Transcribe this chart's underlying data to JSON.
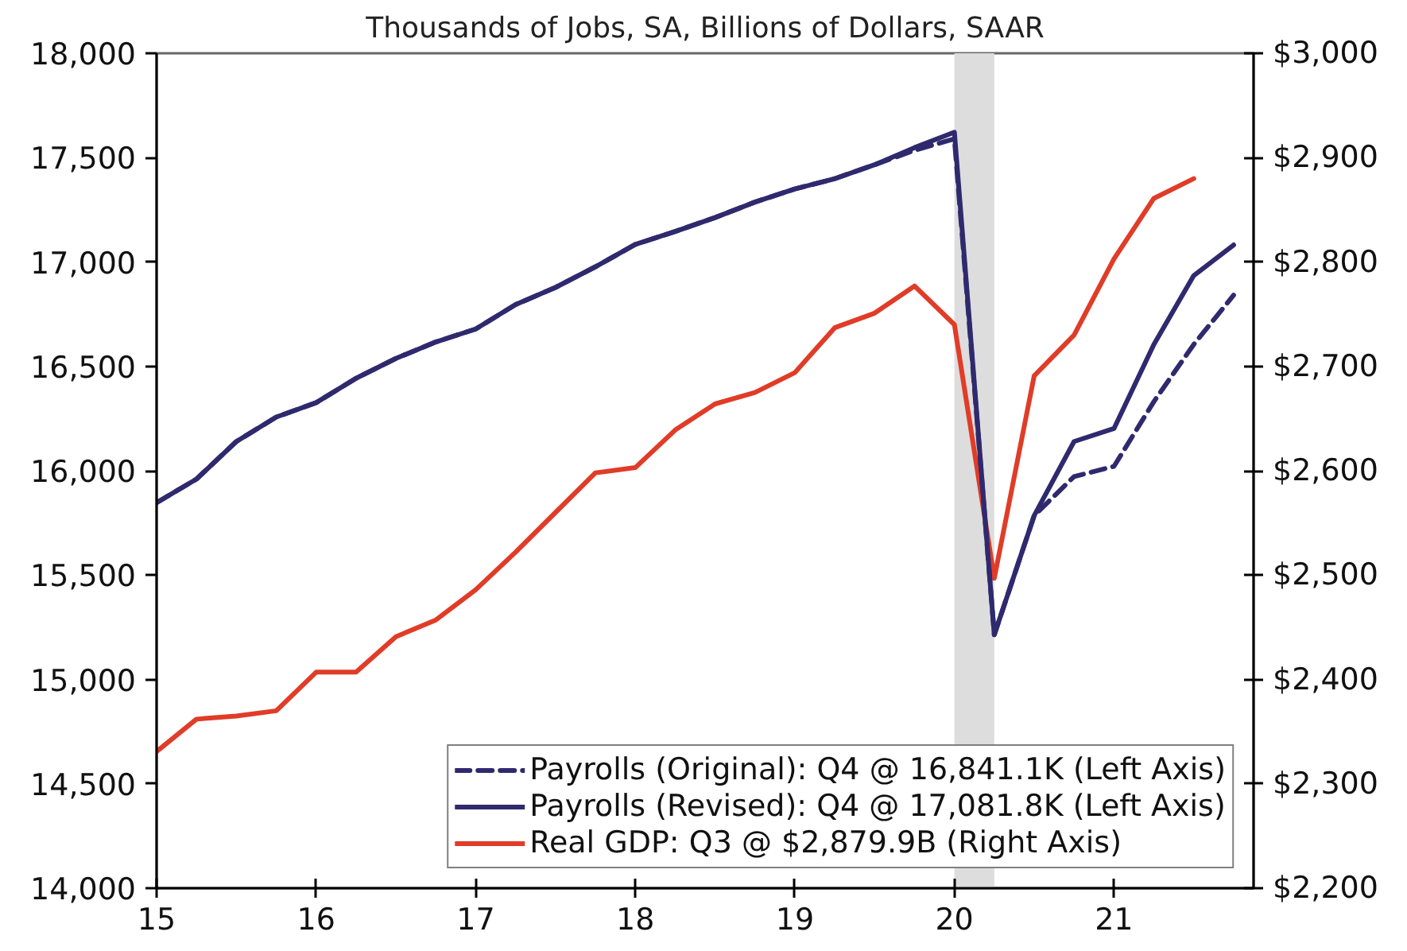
{
  "chart_data": {
    "type": "line",
    "subtitle": "Thousands of Jobs, SA, Billions of Dollars, SAAR",
    "x": [
      15,
      15.25,
      15.5,
      15.75,
      16,
      16.25,
      16.5,
      16.75,
      17,
      17.25,
      17.5,
      17.75,
      18,
      18.25,
      18.5,
      18.75,
      19,
      19.25,
      19.5,
      19.75,
      20,
      20.25,
      20.5,
      20.75,
      21,
      21.25,
      21.5,
      21.75
    ],
    "xlim": [
      15,
      21.875
    ],
    "xticks": [
      15,
      16,
      17,
      18,
      19,
      20,
      21
    ],
    "ylim": [
      14000,
      18000
    ],
    "yticks": [
      {
        "value": 14000,
        "label": "14,000"
      },
      {
        "value": 14500,
        "label": "14,500"
      },
      {
        "value": 15000,
        "label": "15,000"
      },
      {
        "value": 15500,
        "label": "15,500"
      },
      {
        "value": 16000,
        "label": "16,000"
      },
      {
        "value": 16500,
        "label": "16,500"
      },
      {
        "value": 17000,
        "label": "17,000"
      },
      {
        "value": 17500,
        "label": "17,500"
      },
      {
        "value": 18000,
        "label": "18,000"
      }
    ],
    "y2lim": [
      2200,
      3000
    ],
    "y2ticks": [
      {
        "value": 2200,
        "label": "$2,200"
      },
      {
        "value": 2300,
        "label": "$2,300"
      },
      {
        "value": 2400,
        "label": "$2,400"
      },
      {
        "value": 2500,
        "label": "$2,500"
      },
      {
        "value": 2600,
        "label": "$2,600"
      },
      {
        "value": 2700,
        "label": "$2,700"
      },
      {
        "value": 2800,
        "label": "$2,800"
      },
      {
        "value": 2900,
        "label": "$2,900"
      },
      {
        "value": 3000,
        "label": "$3,000"
      }
    ],
    "grid": false,
    "legend": "bottom right",
    "line_style": "solid",
    "bands": [
      {
        "axis": "x",
        "from": 20,
        "to": 20.25,
        "color": "#dddddd"
      }
    ],
    "series": [
      {
        "name": "Payrolls (Original): Q4 @ 16,841.1K (Left Axis)",
        "color": "#2f2a6e",
        "line_style": "dashed",
        "values": [
          15847,
          15960,
          16140,
          16257,
          16326,
          16443,
          16538,
          16617,
          16679,
          16796,
          16878,
          16977,
          17084,
          17146,
          17213,
          17287,
          17350,
          17399,
          17466,
          17535,
          17590,
          15214,
          15785,
          15972,
          16021,
          16331,
          16605,
          16841.1
        ]
      },
      {
        "name": "Payrolls (Revised): Q4 @ 17,081.8K (Left Axis)",
        "color": "#2f2a6e",
        "values": [
          15847,
          15960,
          16140,
          16257,
          16326,
          16443,
          16538,
          16617,
          16679,
          16796,
          16878,
          16977,
          17084,
          17146,
          17213,
          17287,
          17350,
          17399,
          17466,
          17548,
          17622,
          15214,
          15785,
          16140,
          16202,
          16605,
          16935,
          17081.8
        ]
      },
      {
        "name": "Real GDP: Q3 @ $2,879.9B (Right Axis)",
        "color": "#e03c28",
        "axis": "y2",
        "values": [
          2331,
          2362,
          2365,
          2370,
          2407,
          2407,
          2441,
          2457,
          2486,
          2522,
          2560,
          2598,
          2603,
          2639,
          2664,
          2675,
          2694,
          2737,
          2751,
          2777,
          2740,
          2497,
          2691,
          2730,
          2803,
          2861,
          2879.9,
          null
        ]
      }
    ]
  }
}
